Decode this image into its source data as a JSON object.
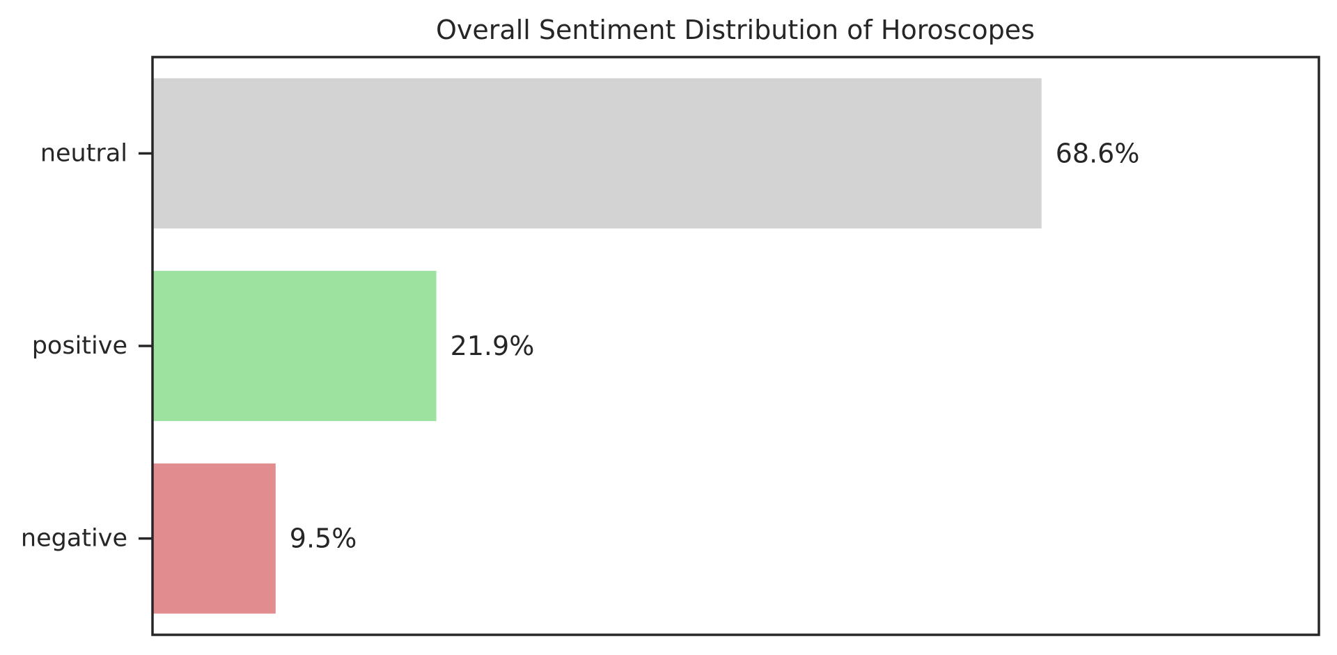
{
  "chart_data": {
    "type": "bar",
    "orientation": "horizontal",
    "title": "Overall Sentiment Distribution of Horoscopes",
    "xlabel": "",
    "ylabel": "",
    "categories": [
      "neutral",
      "positive",
      "negative"
    ],
    "values": [
      68.6,
      21.9,
      9.5
    ],
    "value_labels": [
      "68.6%",
      "21.9%",
      "9.5%"
    ],
    "colors": [
      "#d3d3d3",
      "#9de39f",
      "#e18d8f"
    ],
    "value_unit": "%",
    "xlim": [
      0,
      90
    ],
    "x_ticks_visible": false,
    "grid": false,
    "legend": "none"
  }
}
